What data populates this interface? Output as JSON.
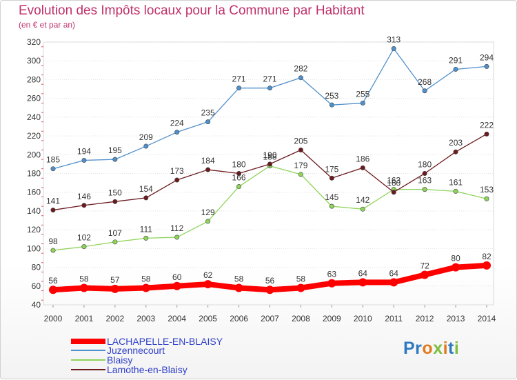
{
  "title": "Evolution des Impôts locaux pour la Commune par Habitant",
  "subtitle": "(en € et par an)",
  "logo_text": "Proxiti",
  "chart_data": {
    "type": "line",
    "title": "Evolution des Impôts locaux pour la Commune par Habitant",
    "subtitle": "(en € et par an)",
    "xlabel": "",
    "ylabel": "",
    "categories": [
      "2000",
      "2001",
      "2002",
      "2003",
      "2004",
      "2005",
      "2006",
      "2007",
      "2008",
      "2009",
      "2010",
      "2011",
      "2012",
      "2013",
      "2014"
    ],
    "ylim": [
      40,
      320
    ],
    "yticks": [
      40,
      60,
      80,
      100,
      120,
      140,
      160,
      180,
      200,
      220,
      240,
      260,
      280,
      300,
      320
    ],
    "grid": "horizontal",
    "legend_position": "bottom-left",
    "series": [
      {
        "name": "LACHAPELLE-EN-BLAISY",
        "color": "#ff0000",
        "values": [
          56,
          58,
          57,
          58,
          60,
          62,
          58,
          56,
          58,
          63,
          64,
          64,
          72,
          80,
          82
        ]
      },
      {
        "name": "Juzennecourt",
        "color": "#4f90cc",
        "values": [
          185,
          194,
          195,
          209,
          224,
          235,
          271,
          271,
          282,
          253,
          255,
          313,
          268,
          291,
          294
        ]
      },
      {
        "name": "Blaisy",
        "color": "#8fd45a",
        "values": [
          98,
          102,
          107,
          111,
          112,
          129,
          166,
          188,
          179,
          145,
          142,
          163,
          163,
          161,
          153
        ]
      },
      {
        "name": "Lamothe-en-Blaisy",
        "color": "#6b1a1e",
        "values": [
          141,
          146,
          150,
          154,
          173,
          184,
          180,
          190,
          205,
          175,
          186,
          160,
          180,
          203,
          222
        ]
      }
    ]
  }
}
